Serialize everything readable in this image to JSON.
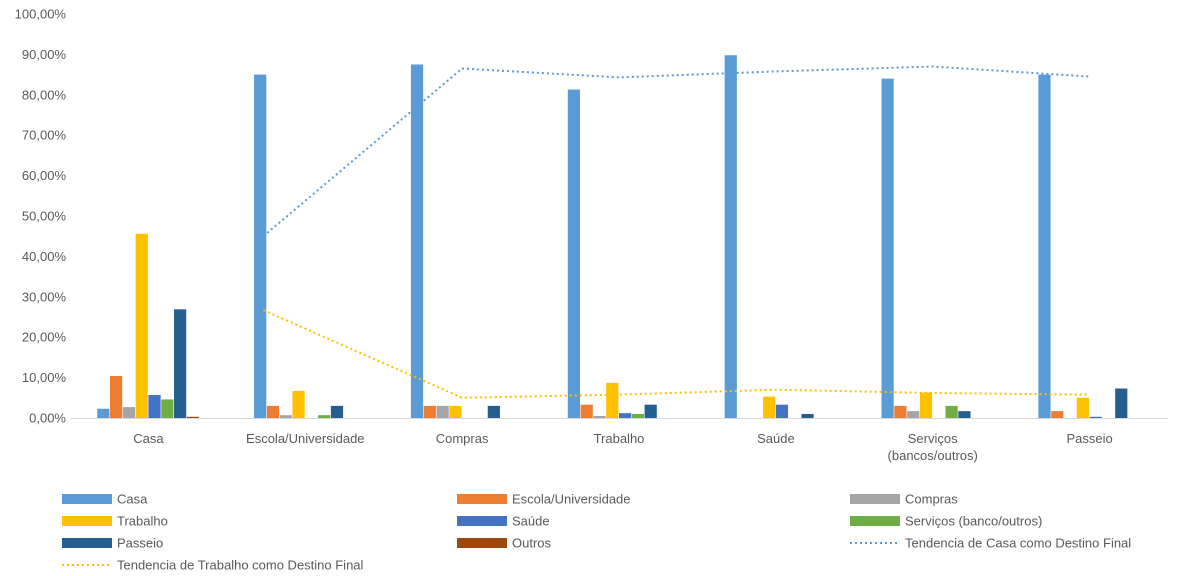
{
  "chart_data": {
    "type": "bar",
    "ylim": [
      0,
      100
    ],
    "ytick_step": 10,
    "ytick_labels": [
      "0,00%",
      "10,00%",
      "20,00%",
      "30,00%",
      "40,00%",
      "50,00%",
      "60,00%",
      "70,00%",
      "80,00%",
      "90,00%",
      "100,00%"
    ],
    "categories": [
      "Casa",
      "Escola/Universidade",
      "Compras",
      "Trabalho",
      "Saúde",
      "Serviços (bancos/outros)",
      "Passeio"
    ],
    "category_lines": [
      [
        "Casa"
      ],
      [
        "Escola/Universidade"
      ],
      [
        "Compras"
      ],
      [
        "Trabalho"
      ],
      [
        "Saúde"
      ],
      [
        "Serviços",
        "(bancos/outros)"
      ],
      [
        "Passeio"
      ]
    ],
    "series": [
      {
        "name": "Casa",
        "color": "#5B9BD5",
        "values": [
          2.3,
          85.0,
          87.5,
          81.3,
          89.8,
          84.0,
          85.0
        ]
      },
      {
        "name": "Escola/Universidade",
        "color": "#ED7D31",
        "values": [
          10.4,
          3.0,
          3.0,
          3.3,
          0,
          3.0,
          1.7
        ]
      },
      {
        "name": "Compras",
        "color": "#A5A5A5",
        "values": [
          2.7,
          0.7,
          3.0,
          0.5,
          0,
          1.7,
          0
        ]
      },
      {
        "name": " Trabalho",
        "color": "#FFC000",
        "values": [
          45.6,
          6.7,
          3.0,
          8.7,
          5.3,
          6.3,
          5.0
        ]
      },
      {
        "name": "Saúde",
        "color": "#4472C4",
        "values": [
          5.7,
          0,
          0,
          1.2,
          3.3,
          0,
          0.3
        ]
      },
      {
        "name": "Serviços (banco/outros)",
        "color": "#70AD47",
        "values": [
          4.6,
          0.7,
          0,
          1.0,
          0,
          3.0,
          0
        ]
      },
      {
        "name": "Passeio",
        "color": "#255E91",
        "values": [
          26.9,
          3.0,
          3.0,
          3.3,
          1.0,
          1.7,
          7.3
        ]
      },
      {
        "name": "Outros",
        "color": "#9E480E",
        "values": [
          0.3,
          0,
          0,
          0,
          0,
          0,
          0
        ]
      }
    ],
    "trendlines": [
      {
        "name": "Tendencia de Casa como Destino Final",
        "color": "#5B9BD5",
        "style": "dotted",
        "values": [
          null,
          45.0,
          86.5,
          84.3,
          85.8,
          87.0,
          84.5
        ]
      },
      {
        "name": "Tendencia de Trabalho como Destino Final",
        "color": "#FFC000",
        "style": "dotted",
        "values": [
          null,
          26.7,
          5.0,
          5.8,
          7.0,
          6.2,
          5.8
        ]
      }
    ],
    "legend_position": "bottom",
    "grid": false
  }
}
